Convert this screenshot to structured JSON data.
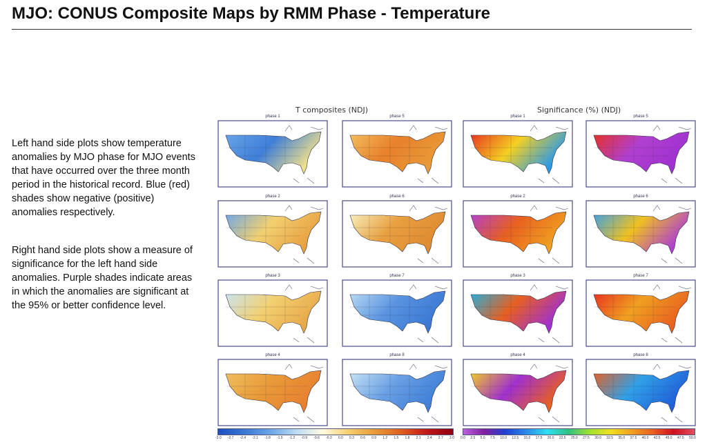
{
  "title": "MJO: CONUS Composite Maps by RMM Phase - Temperature",
  "paragraphs": [
    "Left hand side plots show temperature anomalies by MJO phase for MJO events that have occurred over the three month period in the historical record. Blue (red) shades show negative (positive) anomalies respectively.",
    "Right hand side plots show a measure of significance for the left hand side anomalies. Purple shades indicate areas in which the anomalies are significant at the 95% or better confidence level."
  ],
  "left_header": "T composites (NDJ)",
  "right_header": "Significance (%) (NDJ)",
  "left_panels": [
    {
      "title": "phase 1",
      "colors": [
        "#6aa6e8",
        "#3f7fd8",
        "#f0e08a"
      ]
    },
    {
      "title": "phase 5",
      "colors": [
        "#f4c060",
        "#e8802a",
        "#e89a38"
      ]
    },
    {
      "title": "phase 2",
      "colors": [
        "#6aa6e8",
        "#f2d070",
        "#e8a040"
      ]
    },
    {
      "title": "phase 6",
      "colors": [
        "#f8f0c0",
        "#e8a040",
        "#e08a30"
      ]
    },
    {
      "title": "phase 3",
      "colors": [
        "#c8e4f4",
        "#f2d070",
        "#e8a848"
      ]
    },
    {
      "title": "phase 7",
      "colors": [
        "#bcdcf4",
        "#5a94e0",
        "#3a78d4"
      ]
    },
    {
      "title": "phase 4",
      "colors": [
        "#f0c060",
        "#e89a38",
        "#e88030"
      ]
    },
    {
      "title": "phase 8",
      "colors": [
        "#c8e4f4",
        "#6aa0e4",
        "#3f7fd8"
      ]
    }
  ],
  "right_panels": [
    {
      "title": "phase 1",
      "colors": [
        "#e83020",
        "#f4d020",
        "#2a9ae8"
      ]
    },
    {
      "title": "phase 5",
      "colors": [
        "#e83020",
        "#b040d0",
        "#a030d0"
      ]
    },
    {
      "title": "phase 2",
      "colors": [
        "#b040d0",
        "#e86020",
        "#f0a020"
      ]
    },
    {
      "title": "phase 6",
      "colors": [
        "#3aa0e8",
        "#f0c020",
        "#b040d0"
      ]
    },
    {
      "title": "phase 3",
      "colors": [
        "#20b0e0",
        "#e86020",
        "#a030d0"
      ]
    },
    {
      "title": "phase 7",
      "colors": [
        "#e83020",
        "#f0a020",
        "#e86020"
      ]
    },
    {
      "title": "phase 4",
      "colors": [
        "#f4d020",
        "#a030d0",
        "#e86020"
      ]
    },
    {
      "title": "phase 8",
      "colors": [
        "#e86020",
        "#30a0e8",
        "#2060d8"
      ]
    }
  ],
  "left_colorbar": {
    "ticks": [
      "-3.0",
      "-2.7",
      "-2.4",
      "-2.1",
      "-1.8",
      "-1.5",
      "-1.2",
      "-0.9",
      "-0.6",
      "-0.3",
      "0.0",
      "0.3",
      "0.6",
      "0.9",
      "1.2",
      "1.5",
      "1.8",
      "2.1",
      "2.4",
      "2.7",
      "3.0"
    ],
    "colors": [
      "#1a4fc0",
      "#3a78d4",
      "#6aa6e8",
      "#bcdcf4",
      "#fffbe0",
      "#f4d070",
      "#e89a38",
      "#e06020",
      "#c01818",
      "#900010"
    ]
  },
  "right_colorbar": {
    "ticks": [
      "0.0",
      "2.5",
      "5.0",
      "7.5",
      "10.0",
      "12.5",
      "15.0",
      "17.5",
      "20.0",
      "22.5",
      "25.0",
      "27.5",
      "30.0",
      "32.5",
      "35.0",
      "37.5",
      "40.0",
      "42.5",
      "45.0",
      "47.5",
      "50.0"
    ],
    "colors": [
      "#c060e0",
      "#8020a0",
      "#2040d0",
      "#2a8ae8",
      "#30e0f0",
      "#30c080",
      "#a0e030",
      "#f0e020",
      "#f0a020",
      "#e86020",
      "#d01020",
      "#e05060"
    ]
  }
}
